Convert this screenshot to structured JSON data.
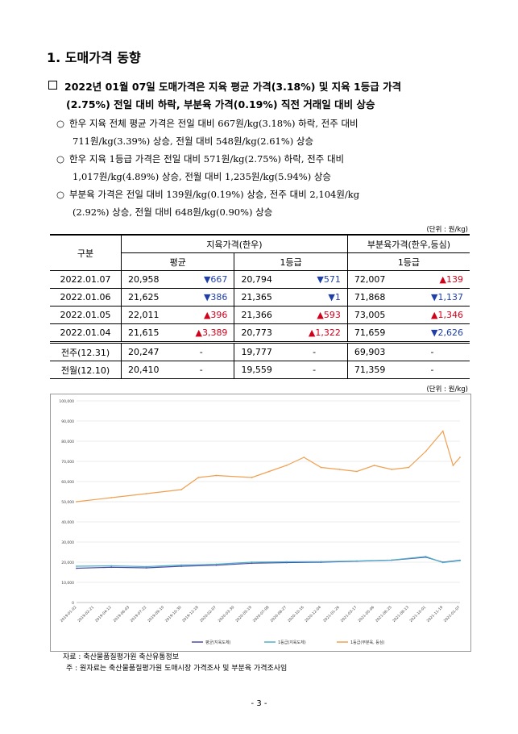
{
  "section_title": "1. 도매가격 동향",
  "headline": {
    "line1": "2022년 01월 07일 도매가격은 지육 평균 가격(3.18%) 및 지육 1등급 가격",
    "line2": "(2.75%) 전일 대비 하락, 부분육 가격(0.19%) 직전 거래일 대비 상승"
  },
  "bullets": [
    {
      "line1": "한우 지육 전체 평균 가격은 전일 대비 667원/kg(3.18%) 하락, 전주 대비",
      "line2": "711원/kg(3.39%) 상승, 전월 대비 548원/kg(2.61%) 상승"
    },
    {
      "line1": "한우 지육 1등급 가격은 전일 대비 571원/kg(2.75%) 하락, 전주 대비",
      "line2": "1,017원/kg(4.89%) 상승, 전월 대비 1,235원/kg(5.94%) 상승"
    },
    {
      "line1": "부분육 가격은 전일 대비 139원/kg(0.19%) 상승, 전주 대비 2,104원/kg",
      "line2": "(2.92%) 상승, 전월 대비 648원/kg(0.90%) 상승"
    }
  ],
  "unit_label": "(단위 : 원/kg)",
  "table": {
    "h_gubun": "구분",
    "h_carcass": "지육가격(한우)",
    "h_primal": "부분육가격(한우,등심)",
    "h_avg": "평균",
    "h_g1": "1등급",
    "h_g1b": "1등급",
    "rows": [
      {
        "date": "2022.01.07",
        "avg": "20,958",
        "avg_chg": "▼667",
        "avg_dir": "down",
        "g1": "20,794",
        "g1_chg": "▼571",
        "g1_dir": "down",
        "p": "72,007",
        "p_chg": "▲139",
        "p_dir": "up"
      },
      {
        "date": "2022.01.06",
        "avg": "21,625",
        "avg_chg": "▼386",
        "avg_dir": "down",
        "g1": "21,365",
        "g1_chg": "▼1",
        "g1_dir": "down",
        "p": "71,868",
        "p_chg": "▼1,137",
        "p_dir": "down"
      },
      {
        "date": "2022.01.05",
        "avg": "22,011",
        "avg_chg": "▲396",
        "avg_dir": "up",
        "g1": "21,366",
        "g1_chg": "▲593",
        "g1_dir": "up",
        "p": "73,005",
        "p_chg": "▲1,346",
        "p_dir": "up"
      },
      {
        "date": "2022.01.04",
        "avg": "21,615",
        "avg_chg": "▲3,389",
        "avg_dir": "up",
        "g1": "20,773",
        "g1_chg": "▲1,322",
        "g1_dir": "up",
        "p": "71,659",
        "p_chg": "▼2,626",
        "p_dir": "down"
      }
    ],
    "ref_rows": [
      {
        "label": "전주(12.31)",
        "avg": "20,247",
        "g1": "19,777",
        "p": "69,903",
        "dash": "-"
      },
      {
        "label": "전월(12.10)",
        "avg": "20,410",
        "g1": "19,559",
        "p": "71,359",
        "dash": "-"
      }
    ]
  },
  "chart_data": {
    "type": "line",
    "ylim": [
      0,
      100000
    ],
    "yticks": [
      "100,000",
      "90,000",
      "80,000",
      "70,000",
      "60,000",
      "50,000",
      "40,000",
      "30,000",
      "20,000",
      "10,000",
      "0"
    ],
    "xticks": [
      "2019-01-02",
      "2019-02-21",
      "2019-04-12",
      "2019-06-03",
      "2019-07-22",
      "2019-09-10",
      "2019-10-30",
      "2019-12-18",
      "2020-02-07",
      "2020-03-30",
      "2020-05-19",
      "2020-07-08",
      "2020-08-27",
      "2020-10-16",
      "2020-12-04",
      "2021-01-26",
      "2021-03-17",
      "2021-05-06",
      "2021-06-25",
      "2021-08-13",
      "2021-10-01",
      "2021-11-19",
      "2022-01-07"
    ],
    "series": [
      {
        "name": "평균(지육도체)",
        "color": "#4a4aa8",
        "x": [
          "2019-01-02",
          "2019-04-12",
          "2019-07-22",
          "2019-10-30",
          "2020-02-07",
          "2020-05-19",
          "2020-08-27",
          "2020-12-04",
          "2021-03-17",
          "2021-06-25",
          "2021-10-01",
          "2021-11-19",
          "2022-01-07"
        ],
        "values": [
          17000,
          17500,
          17200,
          18000,
          18500,
          19500,
          19800,
          20000,
          20500,
          21000,
          22500,
          20000,
          20958
        ]
      },
      {
        "name": "1등급(지육도체)",
        "color": "#4fb0c6",
        "x": [
          "2019-01-02",
          "2019-04-12",
          "2019-07-22",
          "2019-10-30",
          "2020-02-07",
          "2020-05-19",
          "2020-08-27",
          "2020-12-04",
          "2021-03-17",
          "2021-06-25",
          "2021-10-01",
          "2021-11-19",
          "2022-01-07"
        ],
        "values": [
          18000,
          18200,
          17800,
          18600,
          19000,
          20000,
          20200,
          20300,
          20600,
          21100,
          22800,
          19800,
          20794
        ]
      },
      {
        "name": "1등급(부분육, 등심)",
        "color": "#f0a050",
        "x": [
          "2019-01-02",
          "2019-04-12",
          "2019-07-22",
          "2019-10-30",
          "2019-12-18",
          "2020-02-07",
          "2020-05-19",
          "2020-07-08",
          "2020-08-27",
          "2020-10-16",
          "2020-12-04",
          "2021-01-26",
          "2021-03-17",
          "2021-05-06",
          "2021-06-25",
          "2021-08-13",
          "2021-10-01",
          "2021-11-19",
          "2021-12-18",
          "2022-01-07"
        ],
        "values": [
          50000,
          52000,
          54000,
          56000,
          62000,
          63000,
          62000,
          65000,
          68000,
          72000,
          67000,
          66000,
          65000,
          68000,
          66000,
          67000,
          75000,
          85000,
          68000,
          72007
        ]
      }
    ]
  },
  "source": "자료 : 축산물품질평가원 축산유통정보",
  "note": "주 : 원자료는 축산물품질평가원 도매시장 가격조사 및 부분육 가격조사임",
  "page_number": "- 3 -"
}
